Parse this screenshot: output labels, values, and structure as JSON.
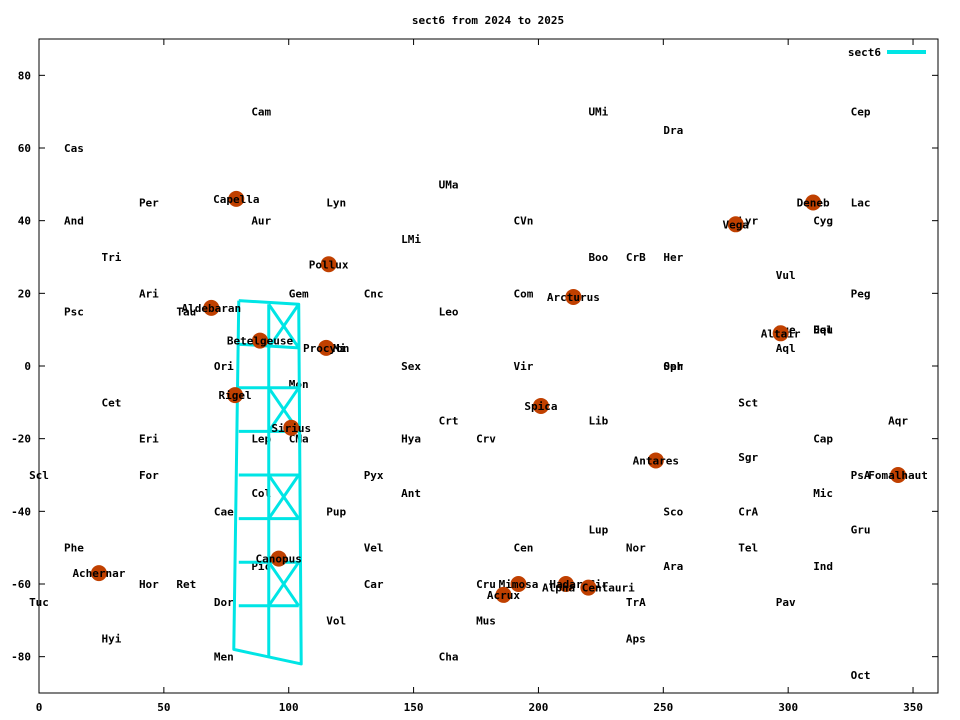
{
  "chart_data": {
    "type": "scatter",
    "title": "sect6 from 2024 to 2025",
    "xlim": [
      0,
      360
    ],
    "ylim": [
      -90,
      90
    ],
    "x_ticks": [
      0,
      50,
      100,
      150,
      200,
      250,
      300,
      350
    ],
    "y_ticks": [
      -80,
      -60,
      -40,
      -20,
      0,
      20,
      40,
      60,
      80
    ],
    "grid": false,
    "legend": {
      "placement": "top-right",
      "entries": [
        {
          "name": "sect6",
          "color": "#00e5e5"
        }
      ]
    },
    "series": [
      {
        "name": "sect6",
        "color": "#00e5e5",
        "polylines": [
          [
            [
              80,
              18
            ],
            [
              104,
              17
            ],
            [
              105,
              -82
            ],
            [
              78,
              -78
            ],
            [
              80,
              18
            ]
          ],
          [
            [
              92,
              17
            ],
            [
              92,
              -80
            ]
          ],
          [
            [
              80,
              6
            ],
            [
              104,
              5
            ]
          ],
          [
            [
              80,
              -6
            ],
            [
              104,
              -6
            ]
          ],
          [
            [
              80,
              -18
            ],
            [
              104,
              -18
            ]
          ],
          [
            [
              80,
              -30
            ],
            [
              104,
              -30
            ]
          ],
          [
            [
              80,
              -42
            ],
            [
              104,
              -42
            ]
          ],
          [
            [
              80,
              -54
            ],
            [
              104,
              -54
            ]
          ],
          [
            [
              80,
              -66
            ],
            [
              104,
              -66
            ]
          ],
          [
            [
              92,
              17
            ],
            [
              104,
              5
            ]
          ],
          [
            [
              104,
              17
            ],
            [
              92,
              5
            ]
          ],
          [
            [
              92,
              -6
            ],
            [
              104,
              -18
            ]
          ],
          [
            [
              104,
              -6
            ],
            [
              92,
              -18
            ]
          ],
          [
            [
              92,
              -30
            ],
            [
              104,
              -42
            ]
          ],
          [
            [
              104,
              -30
            ],
            [
              92,
              -42
            ]
          ],
          [
            [
              92,
              -54
            ],
            [
              104,
              -66
            ]
          ],
          [
            [
              104,
              -54
            ],
            [
              92,
              -66
            ]
          ]
        ]
      }
    ],
    "stars": [
      {
        "name": "Capella",
        "x": 79,
        "y": 46
      },
      {
        "name": "Aldebaran",
        "x": 69,
        "y": 16
      },
      {
        "name": "Betelgeuse",
        "x": 88.5,
        "y": 7
      },
      {
        "name": "Rigel",
        "x": 78.5,
        "y": -8
      },
      {
        "name": "Sirius",
        "x": 101,
        "y": -17
      },
      {
        "name": "Pollux",
        "x": 116,
        "y": 28
      },
      {
        "name": "Procyon",
        "x": 115,
        "y": 5
      },
      {
        "name": "Canopus",
        "x": 96,
        "y": -53
      },
      {
        "name": "Achernar",
        "x": 24,
        "y": -57
      },
      {
        "name": "Arcturus",
        "x": 214,
        "y": 19
      },
      {
        "name": "Spica",
        "x": 201,
        "y": -11
      },
      {
        "name": "Antares",
        "x": 247,
        "y": -26
      },
      {
        "name": "Mimosa",
        "x": 192,
        "y": -60
      },
      {
        "name": "Acrux",
        "x": 186,
        "y": -63
      },
      {
        "name": "Hadar",
        "x": 211,
        "y": -60
      },
      {
        "name": "Alpha Centauri",
        "x": 220,
        "y": -61
      },
      {
        "name": "Vega",
        "x": 279,
        "y": 39
      },
      {
        "name": "Deneb",
        "x": 310,
        "y": 45
      },
      {
        "name": "Altair",
        "x": 297,
        "y": 9
      },
      {
        "name": "Fomalhaut",
        "x": 344,
        "y": -30
      }
    ],
    "star_color": "#c04000",
    "constellations": [
      {
        "name": "Cam",
        "x": 89,
        "y": 70
      },
      {
        "name": "UMi",
        "x": 224,
        "y": 70
      },
      {
        "name": "Cep",
        "x": 329,
        "y": 70
      },
      {
        "name": "Dra",
        "x": 254,
        "y": 65
      },
      {
        "name": "Cas",
        "x": 14,
        "y": 60
      },
      {
        "name": "UMa",
        "x": 164,
        "y": 50
      },
      {
        "name": "Per",
        "x": 44,
        "y": 45
      },
      {
        "name": "Lyn",
        "x": 119,
        "y": 45
      },
      {
        "name": "Lac",
        "x": 329,
        "y": 45
      },
      {
        "name": "And",
        "x": 14,
        "y": 40
      },
      {
        "name": "Aur",
        "x": 89,
        "y": 40
      },
      {
        "name": "CVn",
        "x": 194,
        "y": 40
      },
      {
        "name": "Lyr",
        "x": 284,
        "y": 40
      },
      {
        "name": "Cyg",
        "x": 314,
        "y": 40
      },
      {
        "name": "LMi",
        "x": 149,
        "y": 35
      },
      {
        "name": "Tri",
        "x": 29,
        "y": 30
      },
      {
        "name": "Boo",
        "x": 224,
        "y": 30
      },
      {
        "name": "CrB",
        "x": 239,
        "y": 30
      },
      {
        "name": "Her",
        "x": 254,
        "y": 30
      },
      {
        "name": "Vul",
        "x": 299,
        "y": 25
      },
      {
        "name": "Ari",
        "x": 44,
        "y": 20
      },
      {
        "name": "Gem",
        "x": 104,
        "y": 20
      },
      {
        "name": "Cnc",
        "x": 134,
        "y": 20
      },
      {
        "name": "Com",
        "x": 194,
        "y": 20
      },
      {
        "name": "Peg",
        "x": 329,
        "y": 20
      },
      {
        "name": "Psc",
        "x": 14,
        "y": 15
      },
      {
        "name": "Tau",
        "x": 59,
        "y": 15
      },
      {
        "name": "Leo",
        "x": 164,
        "y": 15
      },
      {
        "name": "Sge",
        "x": 299,
        "y": 10
      },
      {
        "name": "Equ",
        "x": 314,
        "y": 10
      },
      {
        "name": "Del",
        "x": 314,
        "y": 10
      },
      {
        "name": "CMi",
        "x": 119,
        "y": 5
      },
      {
        "name": "Aql",
        "x": 299,
        "y": 5
      },
      {
        "name": "Ori",
        "x": 74,
        "y": 0
      },
      {
        "name": "Sex",
        "x": 149,
        "y": 0
      },
      {
        "name": "Vir",
        "x": 194,
        "y": 0
      },
      {
        "name": "Oph",
        "x": 254,
        "y": 0
      },
      {
        "name": "Ser",
        "x": 254,
        "y": 0
      },
      {
        "name": "Mon",
        "x": 104,
        "y": -5
      },
      {
        "name": "Cet",
        "x": 29,
        "y": -10
      },
      {
        "name": "Sct",
        "x": 284,
        "y": -10
      },
      {
        "name": "Crt",
        "x": 164,
        "y": -15
      },
      {
        "name": "Lib",
        "x": 224,
        "y": -15
      },
      {
        "name": "Aqr",
        "x": 344,
        "y": -15
      },
      {
        "name": "Eri",
        "x": 44,
        "y": -20
      },
      {
        "name": "Lep",
        "x": 89,
        "y": -20
      },
      {
        "name": "CMa",
        "x": 104,
        "y": -20
      },
      {
        "name": "Hya",
        "x": 149,
        "y": -20
      },
      {
        "name": "Crv",
        "x": 179,
        "y": -20
      },
      {
        "name": "Cap",
        "x": 314,
        "y": -20
      },
      {
        "name": "Sgr",
        "x": 284,
        "y": -25
      },
      {
        "name": "Scl",
        "x": 0,
        "y": -30
      },
      {
        "name": "For",
        "x": 44,
        "y": -30
      },
      {
        "name": "Pyx",
        "x": 134,
        "y": -30
      },
      {
        "name": "PsA",
        "x": 329,
        "y": -30
      },
      {
        "name": "Col",
        "x": 89,
        "y": -35
      },
      {
        "name": "Ant",
        "x": 149,
        "y": -35
      },
      {
        "name": "Mic",
        "x": 314,
        "y": -35
      },
      {
        "name": "Cae",
        "x": 74,
        "y": -40
      },
      {
        "name": "Pup",
        "x": 119,
        "y": -40
      },
      {
        "name": "Sco",
        "x": 254,
        "y": -40
      },
      {
        "name": "CrA",
        "x": 284,
        "y": -40
      },
      {
        "name": "Gru",
        "x": 329,
        "y": -45
      },
      {
        "name": "Lup",
        "x": 224,
        "y": -45
      },
      {
        "name": "Phe",
        "x": 14,
        "y": -50
      },
      {
        "name": "Vel",
        "x": 134,
        "y": -50
      },
      {
        "name": "Cen",
        "x": 194,
        "y": -50
      },
      {
        "name": "Nor",
        "x": 239,
        "y": -50
      },
      {
        "name": "Tel",
        "x": 284,
        "y": -50
      },
      {
        "name": "Pic",
        "x": 89,
        "y": -55
      },
      {
        "name": "Ara",
        "x": 254,
        "y": -55
      },
      {
        "name": "Ind",
        "x": 314,
        "y": -55
      },
      {
        "name": "Hor",
        "x": 44,
        "y": -60
      },
      {
        "name": "Ret",
        "x": 59,
        "y": -60
      },
      {
        "name": "Car",
        "x": 134,
        "y": -60
      },
      {
        "name": "Cru",
        "x": 179,
        "y": -60
      },
      {
        "name": "Cir",
        "x": 224,
        "y": -60
      },
      {
        "name": "Tuc",
        "x": 0,
        "y": -65
      },
      {
        "name": "Dor",
        "x": 74,
        "y": -65
      },
      {
        "name": "TrA",
        "x": 239,
        "y": -65
      },
      {
        "name": "Pav",
        "x": 299,
        "y": -65
      },
      {
        "name": "Vol",
        "x": 119,
        "y": -70
      },
      {
        "name": "Mus",
        "x": 179,
        "y": -70
      },
      {
        "name": "Hyi",
        "x": 29,
        "y": -75
      },
      {
        "name": "Aps",
        "x": 239,
        "y": -75
      },
      {
        "name": "Men",
        "x": 74,
        "y": -80
      },
      {
        "name": "Cha",
        "x": 164,
        "y": -80
      },
      {
        "name": "Oct",
        "x": 329,
        "y": -85
      }
    ]
  }
}
